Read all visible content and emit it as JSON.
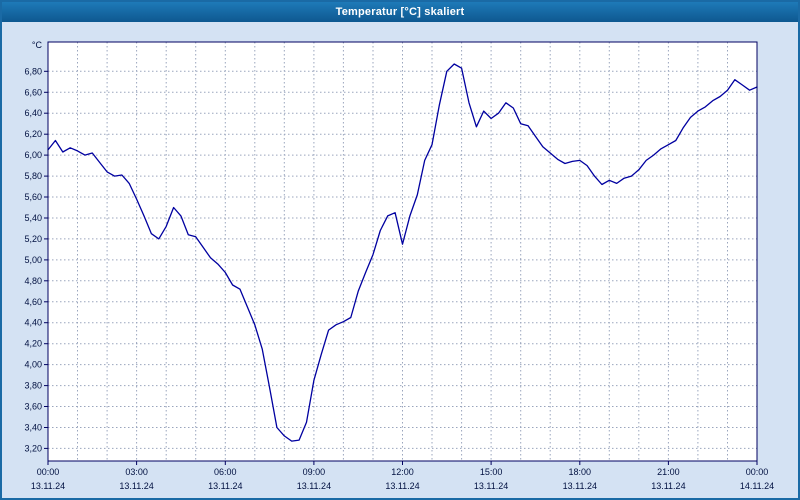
{
  "window": {
    "title": "Temperatur [°C] skaliert"
  },
  "colors": {
    "titlebar_top": "#1e7ab8",
    "titlebar_bottom": "#0e5890",
    "window_border": "#1a6aa5",
    "chart_background": "#d4e2f3"
  },
  "chart_data": {
    "type": "line",
    "title": "Temperatur [°C] skaliert",
    "ylabel": "°C",
    "xlabel": "",
    "legend": "none",
    "grid": "on",
    "line_color": "#0000a0",
    "grid_color": "#9aa5bd",
    "frame_color": "#000060",
    "plot_bg": "#ffffff",
    "ylim": [
      3.2,
      6.8
    ],
    "ytick_step": 0.2,
    "y_ticks": [
      3.2,
      3.4,
      3.6,
      3.8,
      4.0,
      4.2,
      4.4,
      4.6,
      4.8,
      5.0,
      5.2,
      5.4,
      5.6,
      5.8,
      6.0,
      6.2,
      6.4,
      6.6,
      6.8
    ],
    "y_tick_labels": [
      "3,20",
      "3,40",
      "3,60",
      "3,80",
      "4,00",
      "4,20",
      "4,40",
      "4,60",
      "4,80",
      "5,00",
      "5,20",
      "5,40",
      "5,60",
      "5,80",
      "6,00",
      "6,20",
      "6,40",
      "6,60",
      "6,80"
    ],
    "x_unit": "hours",
    "x_range_hours": [
      0,
      24
    ],
    "x_ticks": [
      {
        "hour": 0,
        "time": "00:00",
        "date": "13.11.24"
      },
      {
        "hour": 3,
        "time": "03:00",
        "date": "13.11.24"
      },
      {
        "hour": 6,
        "time": "06:00",
        "date": "13.11.24"
      },
      {
        "hour": 9,
        "time": "09:00",
        "date": "13.11.24"
      },
      {
        "hour": 12,
        "time": "12:00",
        "date": "13.11.24"
      },
      {
        "hour": 15,
        "time": "15:00",
        "date": "13.11.24"
      },
      {
        "hour": 18,
        "time": "18:00",
        "date": "13.11.24"
      },
      {
        "hour": 21,
        "time": "21:00",
        "date": "13.11.24"
      },
      {
        "hour": 24,
        "time": "00:00",
        "date": "14.11.24"
      }
    ],
    "x0": 0,
    "dx": 0.25,
    "y": [
      6.05,
      6.14,
      6.03,
      6.07,
      6.04,
      6.0,
      6.02,
      5.93,
      5.84,
      5.8,
      5.81,
      5.73,
      5.58,
      5.42,
      5.25,
      5.2,
      5.32,
      5.5,
      5.42,
      5.24,
      5.22,
      5.12,
      5.02,
      4.96,
      4.88,
      4.76,
      4.72,
      4.55,
      4.38,
      4.15,
      3.78,
      3.4,
      3.32,
      3.27,
      3.28,
      3.45,
      3.85,
      4.1,
      4.33,
      4.38,
      4.41,
      4.45,
      4.7,
      4.88,
      5.05,
      5.28,
      5.42,
      5.45,
      5.15,
      5.42,
      5.62,
      5.95,
      6.1,
      6.48,
      6.8,
      6.87,
      6.83,
      6.5,
      6.27,
      6.42,
      6.35,
      6.4,
      6.5,
      6.45,
      6.3,
      6.28,
      6.18,
      6.08,
      6.02,
      5.96,
      5.92,
      5.94,
      5.95,
      5.9,
      5.8,
      5.72,
      5.76,
      5.73,
      5.78,
      5.8,
      5.86,
      5.95,
      6.0,
      6.06,
      6.1,
      6.14,
      6.26,
      6.36,
      6.42,
      6.46,
      6.52,
      6.56,
      6.62,
      6.72,
      6.67,
      6.62,
      6.65
    ]
  }
}
